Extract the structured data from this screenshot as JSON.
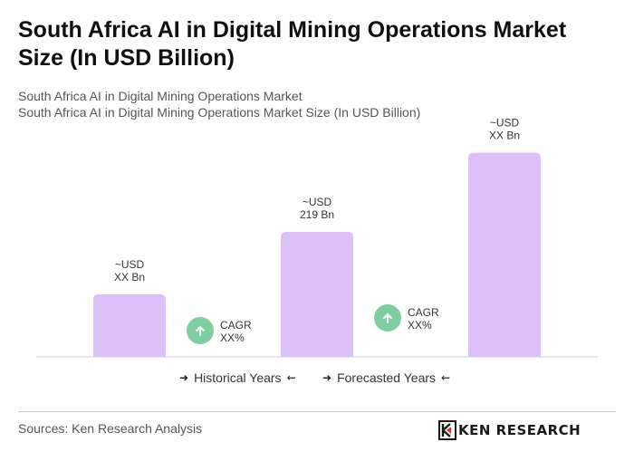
{
  "title": "South Africa AI in Digital Mining Operations Market Size (In USD Billion)",
  "subtitle_1": "South Africa AI in Digital Mining Operations Market",
  "subtitle_2": "South Africa AI in Digital Mining Operations Market Size (In USD Billion)",
  "legend": {
    "historical": "Historical Years",
    "forecasted": "Forecasted Years"
  },
  "source": "Sources: Ken Research Analysis",
  "logo_text": "KEN RESEARCH",
  "colors": {
    "bar": "#dcc0f7",
    "cagr_circle": "#7dcf9f",
    "axis": "#cccccc"
  },
  "chart_data": {
    "type": "bar",
    "bars": [
      {
        "label_line1": "~USD",
        "label_line2": "XX Bn",
        "value": 30
      },
      {
        "label_line1": "~USD",
        "label_line2": "219 Bn",
        "value": 60
      },
      {
        "label_line1": "~USD",
        "label_line2": "XX Bn",
        "value": 98
      }
    ],
    "cagr": [
      {
        "label_line1": "CAGR",
        "label_line2": "XX%",
        "icon": "arrow-up-icon"
      },
      {
        "label_line1": "CAGR",
        "label_line2": "XX%",
        "icon": "arrow-up-icon"
      }
    ],
    "ylim": [
      0,
      100
    ]
  }
}
